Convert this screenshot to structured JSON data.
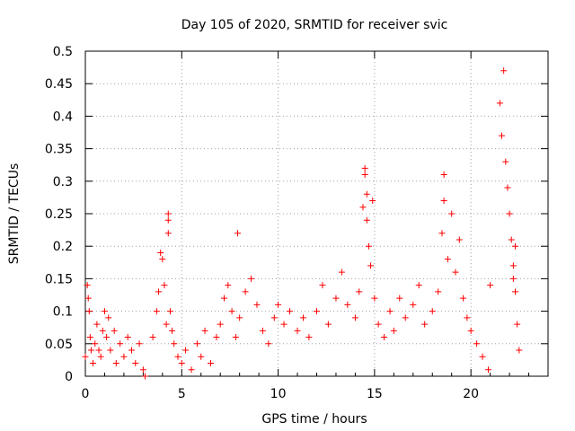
{
  "chart_data": {
    "type": "scatter",
    "title": "Day 105 of 2020, SRMTID for receiver svic",
    "xlabel": "GPS time / hours",
    "ylabel": "SRMTID / TECUs",
    "xlim": [
      0,
      24
    ],
    "ylim": [
      0,
      0.5
    ],
    "x_ticks": [
      0,
      5,
      10,
      15,
      20
    ],
    "y_ticks": [
      0,
      0.05,
      0.1,
      0.15,
      0.2,
      0.25,
      0.3,
      0.35,
      0.4,
      0.45,
      0.5
    ],
    "x_tick_labels": [
      "0",
      "5",
      "10",
      "15",
      "20"
    ],
    "y_tick_labels": [
      "0",
      "0.05",
      "0.1",
      "0.15",
      "0.2",
      "0.25",
      "0.3",
      "0.35",
      "0.4",
      "0.45",
      "0.5"
    ],
    "grid": true,
    "marker": "+",
    "marker_color": "#ff0000",
    "series": [
      {
        "name": "SRMTID",
        "points": [
          [
            0.0,
            0.03
          ],
          [
            0.1,
            0.14
          ],
          [
            0.15,
            0.12
          ],
          [
            0.2,
            0.1
          ],
          [
            0.25,
            0.06
          ],
          [
            0.3,
            0.04
          ],
          [
            0.4,
            0.02
          ],
          [
            0.5,
            0.05
          ],
          [
            0.6,
            0.08
          ],
          [
            0.7,
            0.04
          ],
          [
            0.8,
            0.03
          ],
          [
            0.9,
            0.07
          ],
          [
            1.0,
            0.1
          ],
          [
            1.1,
            0.06
          ],
          [
            1.2,
            0.09
          ],
          [
            1.3,
            0.04
          ],
          [
            1.5,
            0.07
          ],
          [
            1.6,
            0.02
          ],
          [
            1.8,
            0.05
          ],
          [
            2.0,
            0.03
          ],
          [
            2.2,
            0.06
          ],
          [
            2.4,
            0.04
          ],
          [
            2.6,
            0.02
          ],
          [
            2.8,
            0.05
          ],
          [
            3.0,
            0.01
          ],
          [
            3.1,
            0.0
          ],
          [
            3.5,
            0.06
          ],
          [
            3.7,
            0.1
          ],
          [
            3.8,
            0.13
          ],
          [
            3.9,
            0.19
          ],
          [
            4.0,
            0.18
          ],
          [
            4.1,
            0.14
          ],
          [
            4.2,
            0.08
          ],
          [
            4.3,
            0.24
          ],
          [
            4.3,
            0.22
          ],
          [
            4.3,
            0.25
          ],
          [
            4.4,
            0.1
          ],
          [
            4.5,
            0.07
          ],
          [
            4.6,
            0.05
          ],
          [
            4.8,
            0.03
          ],
          [
            5.0,
            0.02
          ],
          [
            5.2,
            0.04
          ],
          [
            5.5,
            0.01
          ],
          [
            5.8,
            0.05
          ],
          [
            6.0,
            0.03
          ],
          [
            6.2,
            0.07
          ],
          [
            6.5,
            0.02
          ],
          [
            6.8,
            0.06
          ],
          [
            7.0,
            0.08
          ],
          [
            7.2,
            0.12
          ],
          [
            7.4,
            0.14
          ],
          [
            7.6,
            0.1
          ],
          [
            7.8,
            0.06
          ],
          [
            7.9,
            0.22
          ],
          [
            8.0,
            0.09
          ],
          [
            8.3,
            0.13
          ],
          [
            8.6,
            0.15
          ],
          [
            8.9,
            0.11
          ],
          [
            9.2,
            0.07
          ],
          [
            9.5,
            0.05
          ],
          [
            9.8,
            0.09
          ],
          [
            10.0,
            0.11
          ],
          [
            10.3,
            0.08
          ],
          [
            10.6,
            0.1
          ],
          [
            11.0,
            0.07
          ],
          [
            11.3,
            0.09
          ],
          [
            11.6,
            0.06
          ],
          [
            12.0,
            0.1
          ],
          [
            12.3,
            0.14
          ],
          [
            12.6,
            0.08
          ],
          [
            13.0,
            0.12
          ],
          [
            13.3,
            0.16
          ],
          [
            13.6,
            0.11
          ],
          [
            14.0,
            0.09
          ],
          [
            14.2,
            0.13
          ],
          [
            14.4,
            0.26
          ],
          [
            14.5,
            0.31
          ],
          [
            14.5,
            0.32
          ],
          [
            14.6,
            0.28
          ],
          [
            14.6,
            0.24
          ],
          [
            14.7,
            0.2
          ],
          [
            14.8,
            0.17
          ],
          [
            14.9,
            0.27
          ],
          [
            15.0,
            0.12
          ],
          [
            15.2,
            0.08
          ],
          [
            15.5,
            0.06
          ],
          [
            15.8,
            0.1
          ],
          [
            16.0,
            0.07
          ],
          [
            16.3,
            0.12
          ],
          [
            16.6,
            0.09
          ],
          [
            17.0,
            0.11
          ],
          [
            17.3,
            0.14
          ],
          [
            17.6,
            0.08
          ],
          [
            18.0,
            0.1
          ],
          [
            18.3,
            0.13
          ],
          [
            18.5,
            0.22
          ],
          [
            18.6,
            0.27
          ],
          [
            18.6,
            0.31
          ],
          [
            18.8,
            0.18
          ],
          [
            19.0,
            0.25
          ],
          [
            19.2,
            0.16
          ],
          [
            19.4,
            0.21
          ],
          [
            19.6,
            0.12
          ],
          [
            19.8,
            0.09
          ],
          [
            20.0,
            0.07
          ],
          [
            20.3,
            0.05
          ],
          [
            20.6,
            0.03
          ],
          [
            20.9,
            0.01
          ],
          [
            21.0,
            0.14
          ],
          [
            21.5,
            0.42
          ],
          [
            21.6,
            0.37
          ],
          [
            21.7,
            0.47
          ],
          [
            21.8,
            0.33
          ],
          [
            21.9,
            0.29
          ],
          [
            22.0,
            0.25
          ],
          [
            22.1,
            0.21
          ],
          [
            22.2,
            0.17
          ],
          [
            22.3,
            0.13
          ],
          [
            22.4,
            0.08
          ],
          [
            22.5,
            0.04
          ],
          [
            22.3,
            0.2
          ],
          [
            22.2,
            0.15
          ]
        ]
      }
    ]
  }
}
